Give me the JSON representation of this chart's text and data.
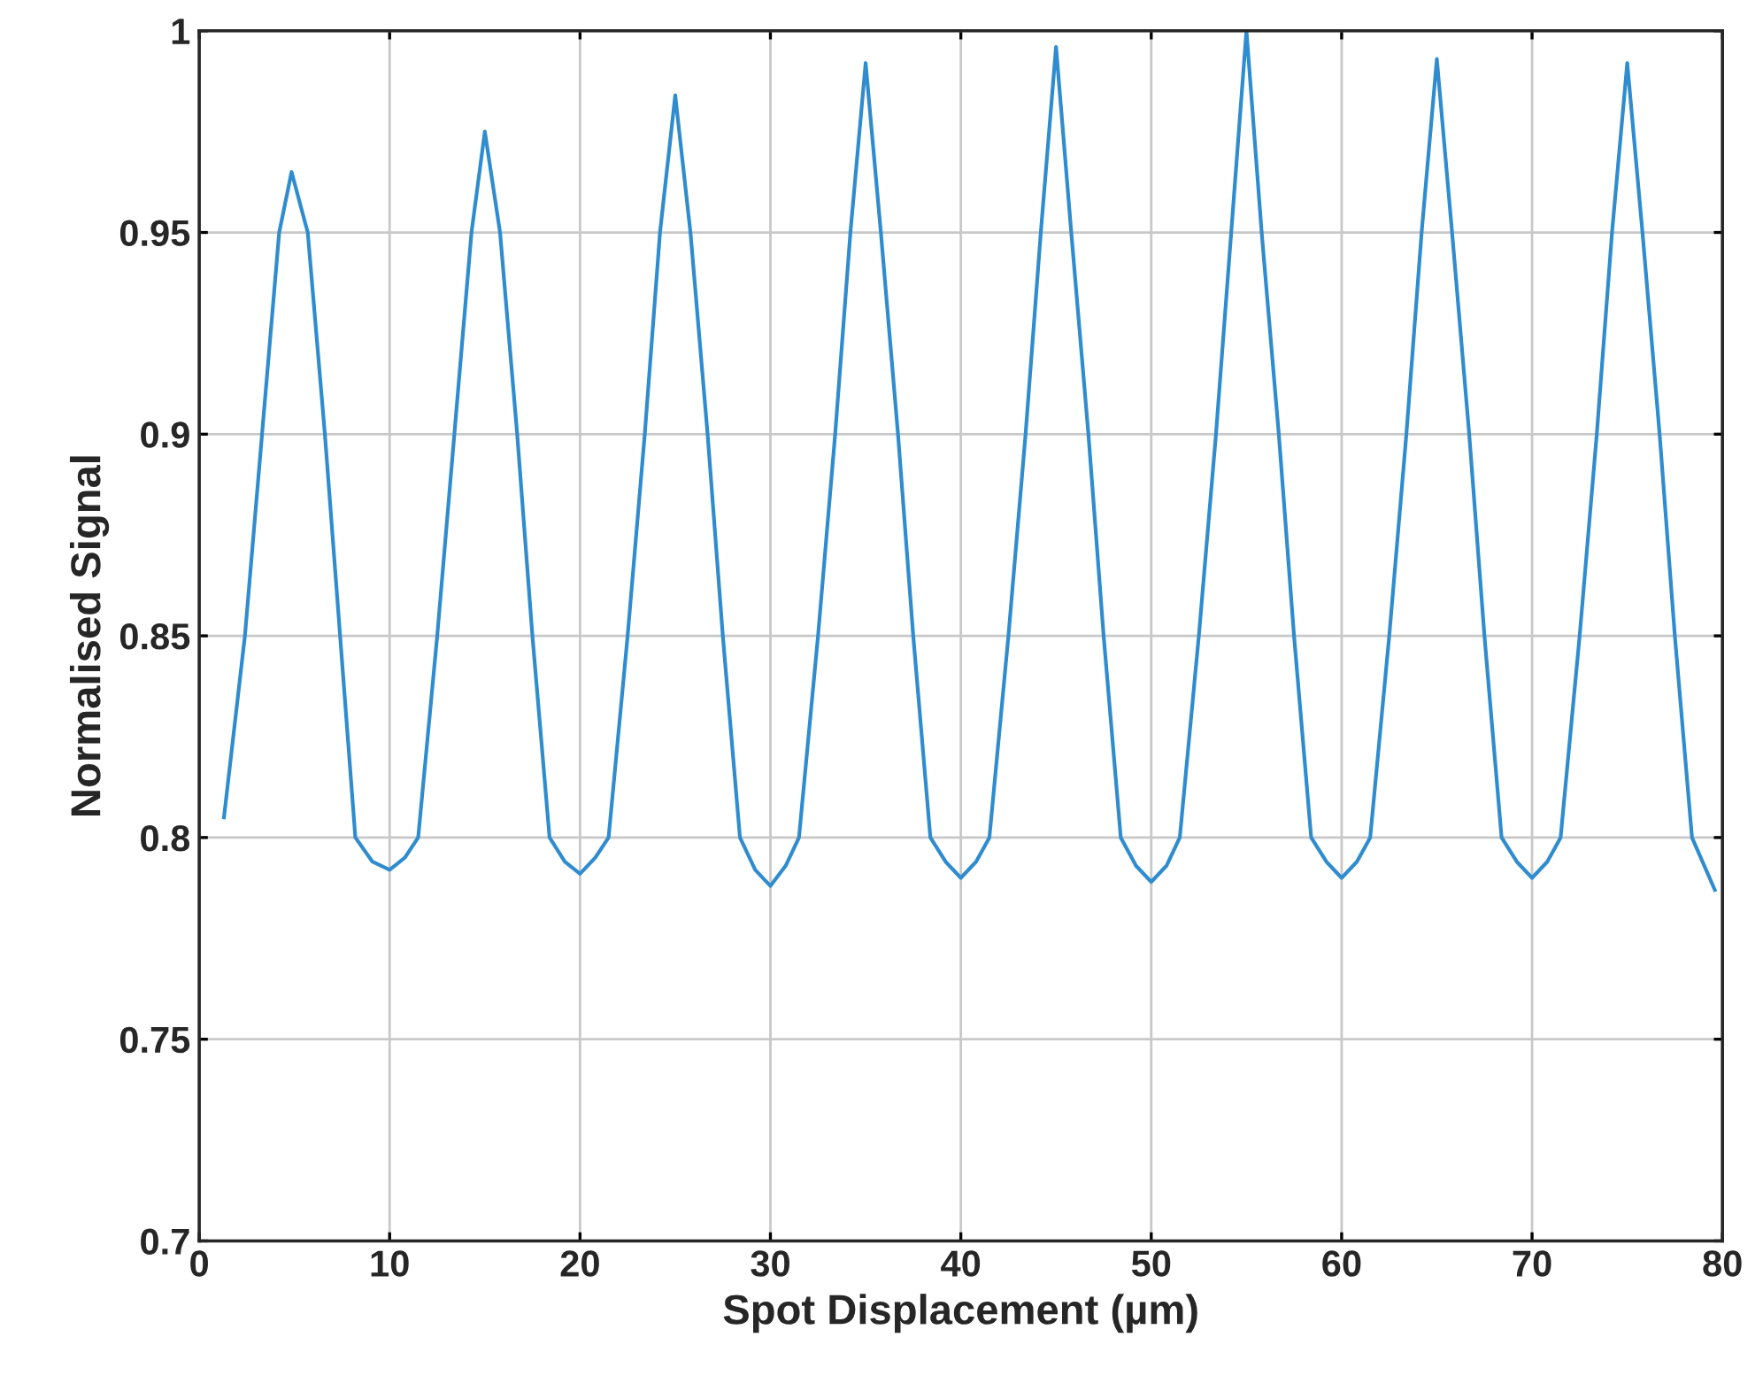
{
  "chart_data": {
    "type": "line",
    "xlabel": "Spot Displacement (µm)",
    "ylabel": "Normalised Signal",
    "series": [
      {
        "color": "#2f8ccf",
        "x": [
          1.3,
          2.4,
          3.3,
          4.2,
          4.85,
          5.7,
          6.6,
          7.4,
          8.2,
          9.1,
          10,
          10.8,
          11.5,
          12.5,
          13.4,
          14.3,
          15,
          15.8,
          16.7,
          17.5,
          18.4,
          19.2,
          20,
          20.8,
          21.5,
          22.5,
          23.4,
          24.2,
          25,
          25.8,
          26.7,
          27.5,
          28.4,
          29.2,
          30,
          30.8,
          31.5,
          32.5,
          33.4,
          34.2,
          35,
          35.8,
          36.7,
          37.5,
          38.4,
          39.2,
          40,
          40.8,
          41.5,
          42.5,
          43.4,
          44.2,
          45,
          45.8,
          46.7,
          47.5,
          48.4,
          49.2,
          50,
          50.8,
          51.5,
          52.5,
          53.4,
          54.2,
          55,
          55.8,
          56.7,
          57.5,
          58.4,
          59.2,
          60,
          60.8,
          61.5,
          62.5,
          63.4,
          64.2,
          65,
          65.8,
          66.7,
          67.5,
          68.4,
          69.2,
          70,
          70.8,
          71.5,
          72.5,
          73.4,
          74.2,
          75,
          75.8,
          76.7,
          77.5,
          78.4,
          79.6
        ],
        "values": [
          0.805,
          0.85,
          0.9,
          0.95,
          0.965,
          0.95,
          0.9,
          0.85,
          0.8,
          0.794,
          0.792,
          0.795,
          0.8,
          0.85,
          0.9,
          0.95,
          0.975,
          0.95,
          0.9,
          0.85,
          0.8,
          0.794,
          0.791,
          0.795,
          0.8,
          0.85,
          0.9,
          0.95,
          0.984,
          0.95,
          0.9,
          0.85,
          0.8,
          0.792,
          0.788,
          0.793,
          0.8,
          0.85,
          0.9,
          0.95,
          0.992,
          0.95,
          0.9,
          0.85,
          0.8,
          0.794,
          0.79,
          0.794,
          0.8,
          0.85,
          0.9,
          0.95,
          0.996,
          0.95,
          0.9,
          0.85,
          0.8,
          0.793,
          0.789,
          0.793,
          0.8,
          0.85,
          0.9,
          0.95,
          1.0,
          0.95,
          0.9,
          0.85,
          0.8,
          0.794,
          0.79,
          0.794,
          0.8,
          0.85,
          0.9,
          0.95,
          0.993,
          0.95,
          0.9,
          0.85,
          0.8,
          0.794,
          0.79,
          0.794,
          0.8,
          0.85,
          0.9,
          0.95,
          0.992,
          0.95,
          0.9,
          0.85,
          0.8,
          0.787
        ]
      }
    ],
    "xlim": [
      0,
      80
    ],
    "ylim": [
      0.7,
      1
    ],
    "xticks": [
      0,
      10,
      20,
      30,
      40,
      50,
      60,
      70,
      80
    ],
    "yticks": [
      0.7,
      0.75,
      0.8,
      0.85,
      0.9,
      0.95,
      1
    ],
    "grid": true
  }
}
